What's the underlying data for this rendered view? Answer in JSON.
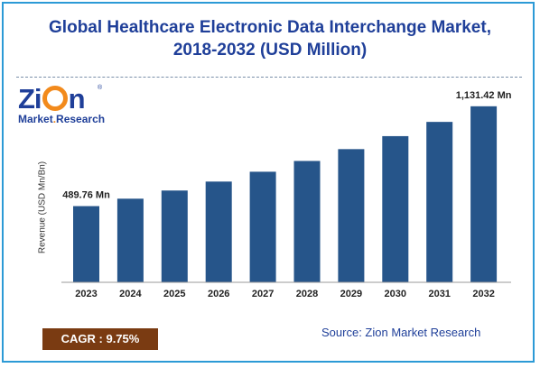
{
  "title_line1": "Global Healthcare Electronic Data Interchange Market,",
  "title_line2": "2018-2032 (USD Million)",
  "logo": {
    "word_pre": "Zi",
    "word_post": "n",
    "sub_a": "Market",
    "sub_dot": ".",
    "sub_b": "Research",
    "tm": "®"
  },
  "cagr": "CAGR : 9.75%",
  "source": "Source: Zion Market Research",
  "colors": {
    "bar": "#26558a",
    "title": "#1f3f99",
    "cagr_bg": "#7a3b12",
    "border": "#2c9ad6"
  },
  "chart_data": {
    "type": "bar",
    "title": "Global Healthcare Electronic Data Interchange Market, 2018-2032 (USD Million)",
    "xlabel": "",
    "ylabel": "Revenue (USD Mn/Bn)",
    "categories": [
      "2023",
      "2024",
      "2025",
      "2026",
      "2027",
      "2028",
      "2029",
      "2030",
      "2031",
      "2032"
    ],
    "values": [
      489.76,
      537.5,
      590,
      647.5,
      710.7,
      780,
      856,
      939.5,
      1031,
      1131.42
    ],
    "data_labels": [
      {
        "index": 0,
        "text": "489.76 Mn"
      },
      {
        "index": 9,
        "text": "1,131.42 Mn"
      }
    ],
    "ylim": [
      0,
      1200
    ],
    "grid": false,
    "legend": "none"
  }
}
